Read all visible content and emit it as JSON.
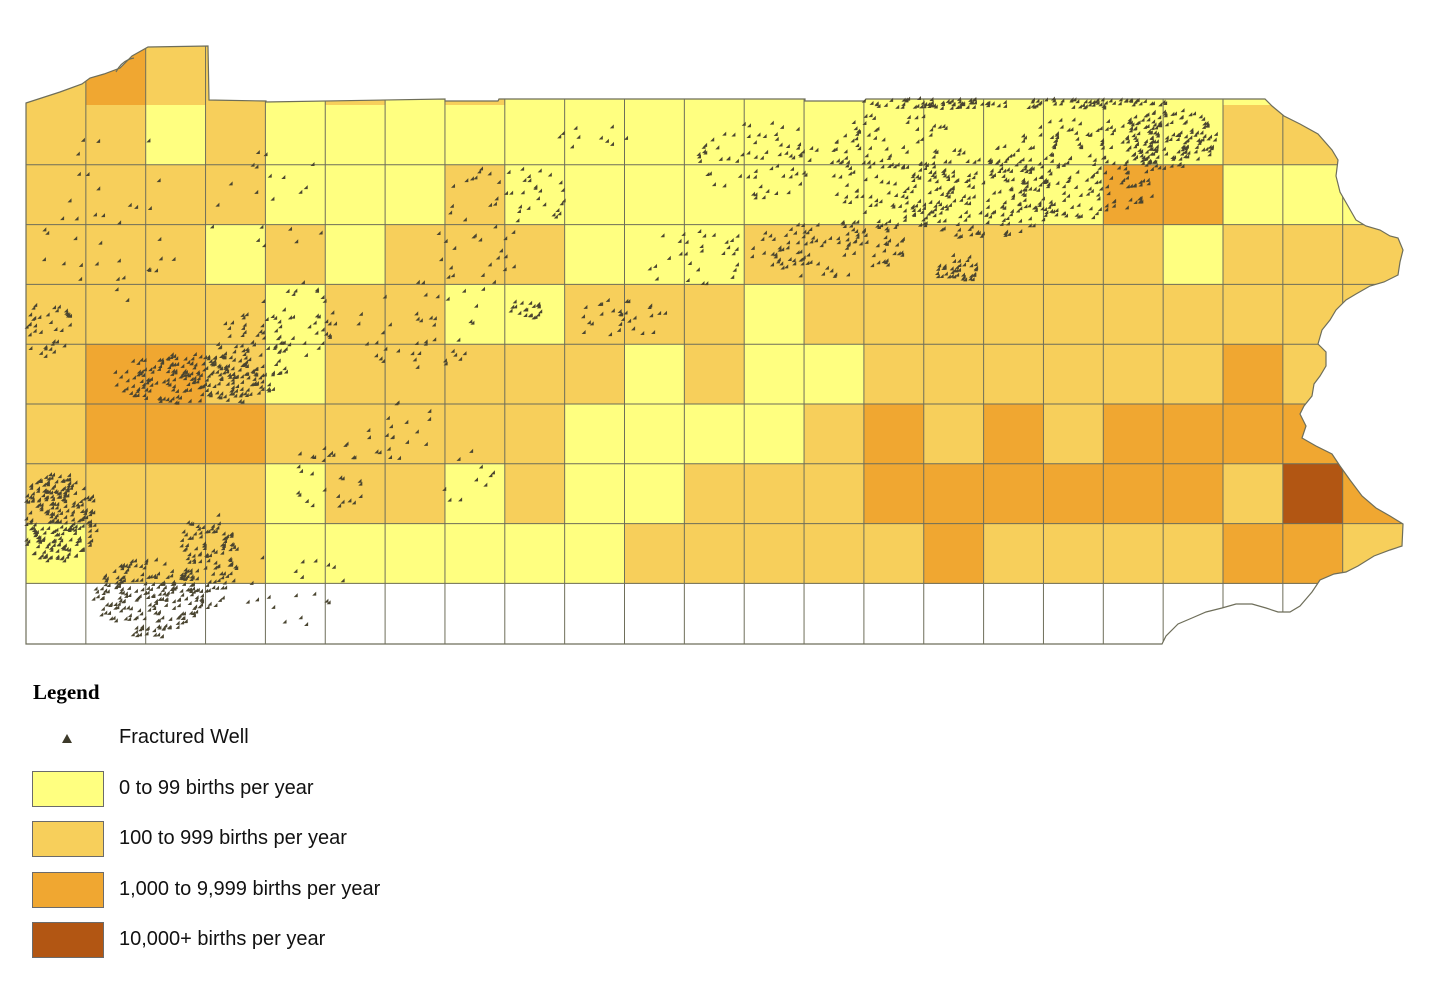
{
  "map": {
    "colors": {
      "class_0": "#ffff80",
      "class_1": "#f7cf5b",
      "class_2": "#f0a731",
      "class_3": "#b25613",
      "grid_line": "#6e6e5a",
      "well": "#4a4530"
    },
    "grid": {
      "columns": 23,
      "rows": 9,
      "classes": [
        [
          1,
          2,
          1,
          1,
          0,
          1,
          0,
          1,
          0,
          0,
          0,
          0,
          0,
          0,
          0,
          0,
          0,
          0,
          0,
          0,
          0,
          0,
          0
        ],
        [
          1,
          1,
          0,
          1,
          0,
          0,
          0,
          0,
          0,
          0,
          0,
          0,
          0,
          0,
          0,
          0,
          0,
          0,
          0,
          0,
          1,
          1,
          1
        ],
        [
          1,
          1,
          1,
          1,
          0,
          0,
          0,
          1,
          0,
          0,
          0,
          0,
          0,
          0,
          0,
          0,
          0,
          0,
          2,
          2,
          0,
          0,
          0
        ],
        [
          1,
          1,
          1,
          0,
          1,
          0,
          1,
          1,
          1,
          0,
          0,
          0,
          1,
          1,
          1,
          1,
          1,
          1,
          1,
          0,
          1,
          1,
          1
        ],
        [
          1,
          1,
          1,
          1,
          0,
          1,
          1,
          0,
          0,
          1,
          1,
          1,
          0,
          1,
          1,
          1,
          1,
          1,
          1,
          1,
          1,
          1,
          1
        ],
        [
          1,
          2,
          2,
          1,
          0,
          1,
          1,
          1,
          1,
          1,
          0,
          1,
          0,
          0,
          1,
          1,
          1,
          1,
          1,
          1,
          2,
          1,
          1
        ],
        [
          1,
          2,
          2,
          2,
          1,
          1,
          1,
          1,
          1,
          0,
          0,
          0,
          0,
          1,
          2,
          1,
          2,
          1,
          2,
          2,
          2,
          2,
          1
        ],
        [
          1,
          1,
          1,
          1,
          0,
          1,
          1,
          0,
          1,
          0,
          0,
          1,
          1,
          1,
          2,
          2,
          2,
          2,
          2,
          2,
          1,
          3,
          2
        ],
        [
          0,
          1,
          1,
          1,
          0,
          0,
          0,
          0,
          0,
          0,
          1,
          1,
          1,
          1,
          1,
          2,
          1,
          1,
          1,
          1,
          2,
          2,
          1
        ]
      ]
    }
  },
  "legend": {
    "title": "Legend",
    "items": [
      {
        "label": "Fractured Well",
        "symbol": "triangle-icon"
      },
      {
        "label": "0 to 99 births per year",
        "color": "#ffff80"
      },
      {
        "label": "100 to 999 births per year",
        "color": "#f7cf5b"
      },
      {
        "label": "1,000 to 9,999 births per year",
        "color": "#f0a731"
      },
      {
        "label": "10,000+ births per year",
        "color": "#b25613"
      }
    ]
  }
}
